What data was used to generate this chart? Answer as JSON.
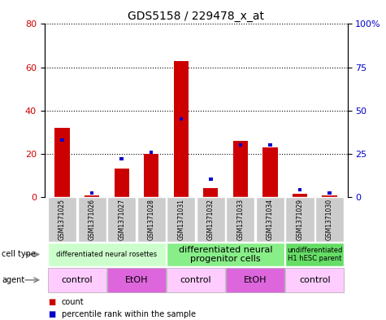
{
  "title": "GDS5158 / 229478_x_at",
  "samples": [
    "GSM1371025",
    "GSM1371026",
    "GSM1371027",
    "GSM1371028",
    "GSM1371031",
    "GSM1371032",
    "GSM1371033",
    "GSM1371034",
    "GSM1371029",
    "GSM1371030"
  ],
  "counts": [
    32,
    0.5,
    13,
    20,
    63,
    4,
    26,
    23,
    1.5,
    0.5
  ],
  "percentiles": [
    33,
    2,
    22,
    26,
    45,
    10,
    30,
    30,
    4,
    2
  ],
  "ylim_left": [
    0,
    80
  ],
  "ylim_right": [
    0,
    100
  ],
  "yticks_left": [
    0,
    20,
    40,
    60,
    80
  ],
  "yticks_right": [
    0,
    25,
    50,
    75,
    100
  ],
  "ytick_labels_right": [
    "0",
    "25",
    "50",
    "75",
    "100%"
  ],
  "bar_color": "#cc0000",
  "percentile_color": "#0000cc",
  "cell_types": [
    {
      "label": "differentiated neural rosettes",
      "start": 0,
      "end": 4,
      "color": "#ccffcc",
      "fontsize": 6
    },
    {
      "label": "differentiated neural\nprogenitor cells",
      "start": 4,
      "end": 8,
      "color": "#88ee88",
      "fontsize": 8
    },
    {
      "label": "undifferentiated\nH1 hESC parent",
      "start": 8,
      "end": 10,
      "color": "#66dd66",
      "fontsize": 6
    }
  ],
  "agents": [
    {
      "label": "control",
      "start": 0,
      "end": 2,
      "color": "#ffccff"
    },
    {
      "label": "EtOH",
      "start": 2,
      "end": 4,
      "color": "#dd66dd"
    },
    {
      "label": "control",
      "start": 4,
      "end": 6,
      "color": "#ffccff"
    },
    {
      "label": "EtOH",
      "start": 6,
      "end": 8,
      "color": "#dd66dd"
    },
    {
      "label": "control",
      "start": 8,
      "end": 10,
      "color": "#ffccff"
    }
  ],
  "sample_bg_color": "#cccccc",
  "legend_count_color": "#cc0000",
  "legend_percentile_color": "#0000cc",
  "fig_width": 4.75,
  "fig_height": 3.93,
  "dpi": 100
}
